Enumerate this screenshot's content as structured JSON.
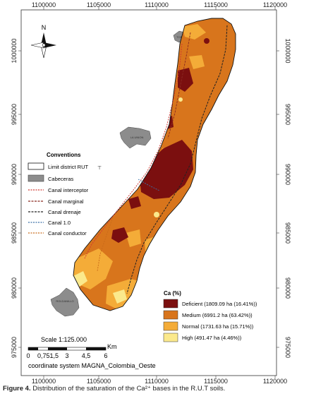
{
  "axes": {
    "x_ticks": [
      "1100000",
      "1105000",
      "1110000",
      "1115000",
      "1120000"
    ],
    "y_ticks": [
      "1000000",
      "995000",
      "990000",
      "985000",
      "980000",
      "975000"
    ]
  },
  "north_arrow": {
    "label": "N"
  },
  "conventions": {
    "title": "Conventions",
    "items": [
      {
        "label": "Limit district RUT",
        "icon": "limit-outline-swatch"
      },
      {
        "label": "Cabeceras",
        "icon": "gray-fill-swatch"
      },
      {
        "label": "Canal interceptor",
        "icon": "canal-line",
        "color": "#d03a32"
      },
      {
        "label": "Canal marginal",
        "icon": "canal-line",
        "color": "#8a2a22"
      },
      {
        "label": "Canal drenaje",
        "icon": "canal-line",
        "color": "#222222"
      },
      {
        "label": "Canal 1.0",
        "icon": "canal-line",
        "color": "#3a6fa6"
      },
      {
        "label": "Canal conductor",
        "icon": "canal-line",
        "color": "#c86a1a"
      }
    ]
  },
  "towns": [
    "TORO",
    "LA UNION",
    "ROLDANILLO"
  ],
  "ca_legend": {
    "title": "Ca (%)",
    "classes": [
      {
        "label": "Deficient (1809.09 ha (16.41%))",
        "color": "#7b0f0f"
      },
      {
        "label": "Medium (6991.2 ha (63.42%))",
        "color": "#d8751c"
      },
      {
        "label": "Normal (1731.63 ha (15.71%))",
        "color": "#f4ac38"
      },
      {
        "label": "High (491.47 ha (4.46%))",
        "color": "#fbe98c"
      }
    ]
  },
  "scale": {
    "label": "Scale 1:125.000",
    "ticks": [
      "0",
      "0,751,5",
      "3",
      "4,5",
      "6"
    ],
    "unit": "Km",
    "crs": "coordinate system MAGNA_Colombia_Oeste"
  },
  "caption": {
    "figure": "Figure 4.",
    "text": " Distribution of the saturation of the Ca²⁺ bases in the R.U.T soils."
  }
}
